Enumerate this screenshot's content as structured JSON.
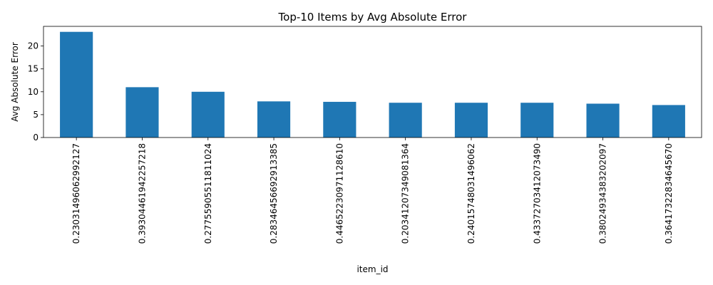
{
  "chart_data": {
    "type": "bar",
    "title": "Top-10 Items by Avg Absolute Error",
    "xlabel": "item_id",
    "ylabel": "Avg Absolute Error",
    "categories": [
      "0.23031496062992127",
      "0.39304461942257218",
      "0.27755905511811024",
      "0.28346456692913385",
      "0.44652230971128610",
      "0.20341207349081364",
      "0.24015748031496062",
      "0.43372703412073490",
      "0.38024934383202097",
      "0.36417322834645670"
    ],
    "values": [
      23.1,
      11.0,
      10.0,
      7.9,
      7.8,
      7.6,
      7.6,
      7.6,
      7.4,
      7.1
    ],
    "ylim": [
      0,
      24.3
    ],
    "yticks": [
      0,
      5,
      10,
      15,
      20
    ],
    "bar_color": "#1f77b4",
    "grid": false,
    "legend": "none"
  }
}
